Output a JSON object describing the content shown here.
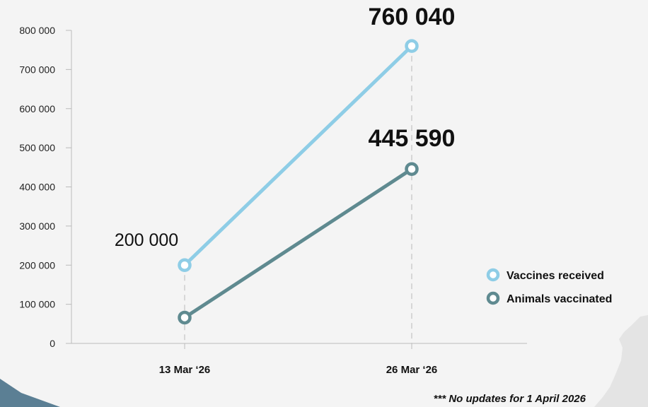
{
  "chart_data": {
    "type": "line",
    "x": [
      "13 Mar ‘26",
      "26 Mar ‘26"
    ],
    "ylim": [
      0,
      800000
    ],
    "yticks": [
      0,
      100000,
      200000,
      300000,
      400000,
      500000,
      600000,
      700000,
      800000
    ],
    "ytick_labels": [
      "0",
      "100 000",
      "200 000",
      "300 000",
      "400 000",
      "500 000",
      "600 000",
      "700 000",
      "800 000"
    ],
    "grid": false,
    "legend_position": "right",
    "series": [
      {
        "name": "Vaccines received",
        "values": [
          200000,
          760040
        ],
        "color": "#8ecde6",
        "data_labels": [
          "200 000",
          "760 040"
        ]
      },
      {
        "name": "Animals vaccinated",
        "values": [
          66000,
          445590
        ],
        "color": "#5f8a90",
        "data_labels": [
          "",
          "445 590"
        ]
      }
    ]
  },
  "footnote": "*** No updates for 1 April 2026",
  "colors": {
    "background": "#f4f4f4",
    "axis": "#bbbbbb",
    "guide": "#cccccc",
    "decor_blue": "#5b7f94",
    "decor_map": "#e4e4e4"
  }
}
